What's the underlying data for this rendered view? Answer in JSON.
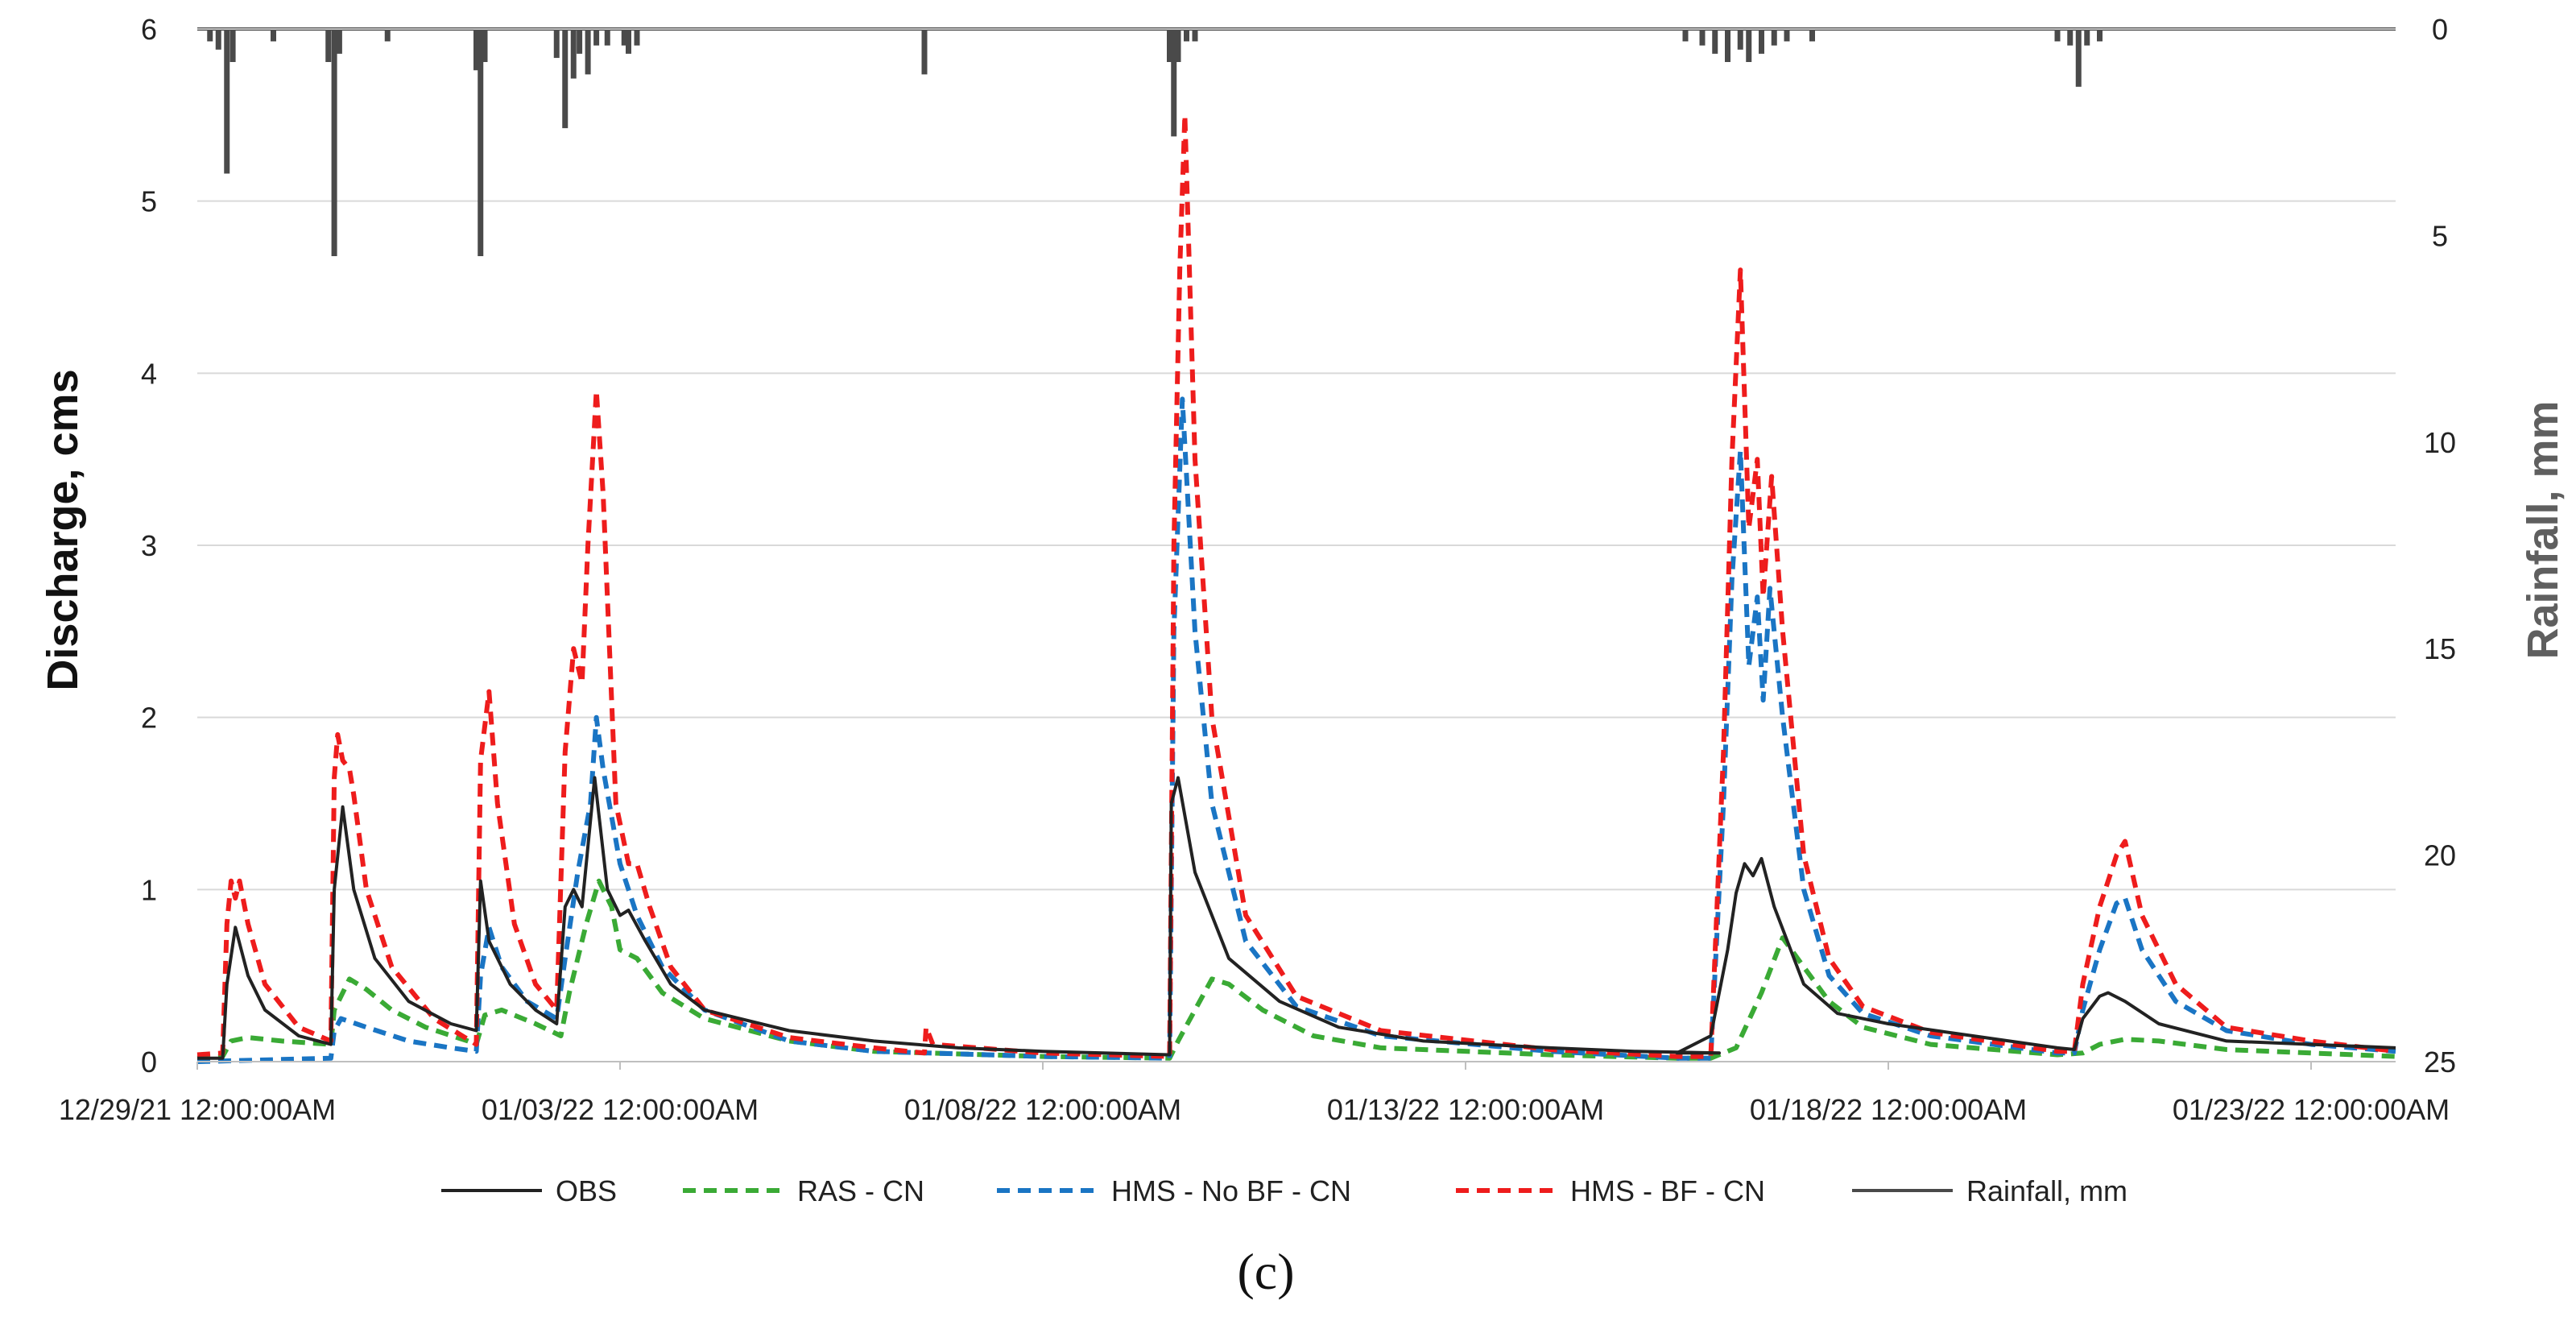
{
  "chart_data": {
    "type": "line",
    "title": "",
    "xlabel": "",
    "ylabel": "Discharge, cms",
    "y2label": "Rainfall, mm",
    "ylim": [
      0,
      6
    ],
    "y2lim": [
      0,
      25
    ],
    "y2_inverted": true,
    "xlim": [
      0,
      26
    ],
    "x_unit": "days since 12/29/21 12:00:00AM",
    "y_ticks": [
      "0",
      "1",
      "2",
      "3",
      "4",
      "5",
      "6"
    ],
    "y2_ticks": [
      "0",
      "5",
      "10",
      "15",
      "20",
      "25"
    ],
    "x_ticks": [
      {
        "x": 0,
        "label": "12/29/21 12:00:00AM"
      },
      {
        "x": 5,
        "label": "01/03/22 12:00:00AM"
      },
      {
        "x": 10,
        "label": "01/08/22 12:00:00AM"
      },
      {
        "x": 15,
        "label": "01/13/22 12:00:00AM"
      },
      {
        "x": 20,
        "label": "01/18/22 12:00:00AM"
      },
      {
        "x": 25,
        "label": "01/23/22 12:00:00AM"
      }
    ],
    "grid": true,
    "legend_position": "bottom",
    "caption": "(c)",
    "series": [
      {
        "name": "OBS",
        "style": "solid",
        "color": "#222222",
        "points": [
          [
            0,
            0.02
          ],
          [
            0.3,
            0.02
          ],
          [
            0.35,
            0.45
          ],
          [
            0.45,
            0.78
          ],
          [
            0.6,
            0.5
          ],
          [
            0.8,
            0.3
          ],
          [
            1.2,
            0.15
          ],
          [
            1.58,
            0.1
          ],
          [
            1.62,
            1.0
          ],
          [
            1.72,
            1.48
          ],
          [
            1.85,
            1.0
          ],
          [
            2.1,
            0.6
          ],
          [
            2.5,
            0.35
          ],
          [
            3.0,
            0.22
          ],
          [
            3.3,
            0.18
          ],
          [
            3.35,
            1.05
          ],
          [
            3.45,
            0.7
          ],
          [
            3.7,
            0.45
          ],
          [
            4.0,
            0.3
          ],
          [
            4.25,
            0.22
          ],
          [
            4.35,
            0.9
          ],
          [
            4.45,
            1.0
          ],
          [
            4.55,
            0.9
          ],
          [
            4.7,
            1.65
          ],
          [
            4.85,
            1.0
          ],
          [
            5.0,
            0.85
          ],
          [
            5.1,
            0.88
          ],
          [
            5.3,
            0.7
          ],
          [
            5.6,
            0.45
          ],
          [
            6.0,
            0.3
          ],
          [
            7.0,
            0.18
          ],
          [
            8.0,
            0.12
          ],
          [
            9.0,
            0.08
          ],
          [
            10.0,
            0.06
          ],
          [
            11.5,
            0.04
          ],
          [
            11.52,
            1.5
          ],
          [
            11.6,
            1.65
          ],
          [
            11.8,
            1.1
          ],
          [
            12.2,
            0.6
          ],
          [
            12.8,
            0.35
          ],
          [
            13.5,
            0.2
          ],
          [
            14.5,
            0.12
          ],
          [
            16.0,
            0.08
          ],
          [
            17.0,
            0.06
          ],
          [
            18.0,
            0.05
          ],
          [
            17.5,
            0.05
          ],
          [
            17.9,
            0.15
          ],
          [
            18.1,
            0.65
          ],
          [
            18.2,
            0.98
          ],
          [
            18.3,
            1.15
          ],
          [
            18.4,
            1.08
          ],
          [
            18.5,
            1.18
          ],
          [
            18.65,
            0.9
          ],
          [
            19.0,
            0.45
          ],
          [
            19.4,
            0.28
          ],
          [
            20.0,
            0.22
          ],
          [
            21.0,
            0.15
          ],
          [
            22.0,
            0.08
          ],
          [
            22.2,
            0.07
          ],
          [
            22.3,
            0.25
          ],
          [
            22.5,
            0.38
          ],
          [
            22.6,
            0.4
          ],
          [
            22.8,
            0.35
          ],
          [
            23.2,
            0.22
          ],
          [
            24.0,
            0.12
          ],
          [
            25.0,
            0.1
          ],
          [
            26.0,
            0.08
          ]
        ]
      },
      {
        "name": "RAS - CN",
        "style": "dashed",
        "color": "#3aaa35",
        "points": [
          [
            0,
            0.02
          ],
          [
            0.3,
            0.03
          ],
          [
            0.4,
            0.12
          ],
          [
            0.6,
            0.14
          ],
          [
            1.0,
            0.12
          ],
          [
            1.58,
            0.1
          ],
          [
            1.62,
            0.3
          ],
          [
            1.8,
            0.48
          ],
          [
            2.0,
            0.42
          ],
          [
            2.3,
            0.3
          ],
          [
            2.7,
            0.2
          ],
          [
            3.2,
            0.12
          ],
          [
            3.3,
            0.1
          ],
          [
            3.4,
            0.27
          ],
          [
            3.6,
            0.3
          ],
          [
            4.0,
            0.22
          ],
          [
            4.3,
            0.15
          ],
          [
            4.4,
            0.4
          ],
          [
            4.6,
            0.8
          ],
          [
            4.75,
            1.05
          ],
          [
            4.9,
            0.9
          ],
          [
            5.0,
            0.65
          ],
          [
            5.2,
            0.6
          ],
          [
            5.5,
            0.4
          ],
          [
            6.0,
            0.25
          ],
          [
            7.0,
            0.12
          ],
          [
            8.0,
            0.06
          ],
          [
            10.0,
            0.03
          ],
          [
            11.5,
            0.02
          ],
          [
            11.6,
            0.12
          ],
          [
            11.8,
            0.3
          ],
          [
            12.0,
            0.48
          ],
          [
            12.2,
            0.45
          ],
          [
            12.6,
            0.3
          ],
          [
            13.2,
            0.15
          ],
          [
            14.0,
            0.08
          ],
          [
            16.0,
            0.04
          ],
          [
            17.5,
            0.02
          ],
          [
            17.9,
            0.02
          ],
          [
            18.2,
            0.08
          ],
          [
            18.5,
            0.4
          ],
          [
            18.75,
            0.72
          ],
          [
            19.0,
            0.55
          ],
          [
            19.3,
            0.35
          ],
          [
            19.7,
            0.2
          ],
          [
            20.5,
            0.1
          ],
          [
            22.0,
            0.04
          ],
          [
            22.3,
            0.05
          ],
          [
            22.5,
            0.1
          ],
          [
            22.8,
            0.13
          ],
          [
            23.2,
            0.12
          ],
          [
            24.0,
            0.07
          ],
          [
            26.0,
            0.03
          ]
        ]
      },
      {
        "name": "HMS - No BF - CN",
        "style": "dashed",
        "color": "#1a75c4",
        "points": [
          [
            0,
            0.0
          ],
          [
            1.58,
            0.02
          ],
          [
            1.62,
            0.18
          ],
          [
            1.7,
            0.25
          ],
          [
            2.0,
            0.2
          ],
          [
            2.5,
            0.12
          ],
          [
            3.0,
            0.08
          ],
          [
            3.3,
            0.06
          ],
          [
            3.35,
            0.5
          ],
          [
            3.45,
            0.78
          ],
          [
            3.6,
            0.55
          ],
          [
            3.9,
            0.35
          ],
          [
            4.25,
            0.25
          ],
          [
            4.35,
            0.6
          ],
          [
            4.5,
            1.1
          ],
          [
            4.65,
            1.5
          ],
          [
            4.72,
            2.0
          ],
          [
            4.8,
            1.7
          ],
          [
            5.0,
            1.15
          ],
          [
            5.2,
            0.85
          ],
          [
            5.5,
            0.55
          ],
          [
            6.0,
            0.3
          ],
          [
            7.0,
            0.12
          ],
          [
            8.0,
            0.06
          ],
          [
            10.0,
            0.03
          ],
          [
            11.5,
            0.02
          ],
          [
            11.55,
            2.5
          ],
          [
            11.65,
            3.85
          ],
          [
            11.8,
            2.5
          ],
          [
            12.0,
            1.5
          ],
          [
            12.4,
            0.7
          ],
          [
            13.0,
            0.32
          ],
          [
            14.0,
            0.15
          ],
          [
            16.0,
            0.06
          ],
          [
            17.5,
            0.02
          ],
          [
            17.9,
            0.02
          ],
          [
            18.05,
            1.5
          ],
          [
            18.15,
            2.8
          ],
          [
            18.25,
            3.55
          ],
          [
            18.35,
            2.3
          ],
          [
            18.45,
            2.7
          ],
          [
            18.52,
            2.1
          ],
          [
            18.6,
            2.75
          ],
          [
            18.75,
            2.0
          ],
          [
            19.0,
            1.0
          ],
          [
            19.3,
            0.5
          ],
          [
            19.7,
            0.28
          ],
          [
            20.5,
            0.15
          ],
          [
            22.0,
            0.05
          ],
          [
            22.2,
            0.05
          ],
          [
            22.3,
            0.3
          ],
          [
            22.5,
            0.65
          ],
          [
            22.7,
            0.92
          ],
          [
            22.8,
            0.95
          ],
          [
            23.0,
            0.65
          ],
          [
            23.4,
            0.35
          ],
          [
            24.0,
            0.18
          ],
          [
            25.0,
            0.1
          ],
          [
            26.0,
            0.06
          ]
        ]
      },
      {
        "name": "HMS - BF - CN",
        "style": "dashed",
        "color": "#ee1c1c",
        "points": [
          [
            0,
            0.04
          ],
          [
            0.3,
            0.05
          ],
          [
            0.35,
            0.8
          ],
          [
            0.4,
            1.05
          ],
          [
            0.45,
            0.95
          ],
          [
            0.5,
            1.05
          ],
          [
            0.6,
            0.8
          ],
          [
            0.8,
            0.45
          ],
          [
            1.2,
            0.2
          ],
          [
            1.58,
            0.12
          ],
          [
            1.62,
            1.65
          ],
          [
            1.66,
            1.9
          ],
          [
            1.72,
            1.75
          ],
          [
            1.8,
            1.7
          ],
          [
            1.85,
            1.55
          ],
          [
            2.0,
            1.0
          ],
          [
            2.3,
            0.55
          ],
          [
            2.8,
            0.25
          ],
          [
            3.3,
            0.1
          ],
          [
            3.35,
            1.75
          ],
          [
            3.45,
            2.15
          ],
          [
            3.55,
            1.5
          ],
          [
            3.75,
            0.8
          ],
          [
            4.0,
            0.45
          ],
          [
            4.25,
            0.3
          ],
          [
            4.35,
            1.8
          ],
          [
            4.45,
            2.4
          ],
          [
            4.55,
            2.2
          ],
          [
            4.62,
            3.0
          ],
          [
            4.72,
            3.9
          ],
          [
            4.8,
            3.3
          ],
          [
            4.95,
            1.5
          ],
          [
            5.1,
            1.15
          ],
          [
            5.2,
            1.15
          ],
          [
            5.35,
            0.9
          ],
          [
            5.6,
            0.55
          ],
          [
            6.0,
            0.3
          ],
          [
            7.0,
            0.14
          ],
          [
            8.0,
            0.08
          ],
          [
            8.6,
            0.05
          ],
          [
            8.62,
            0.2
          ],
          [
            8.7,
            0.1
          ],
          [
            10.0,
            0.05
          ],
          [
            11.5,
            0.03
          ],
          [
            11.55,
            3.0
          ],
          [
            11.62,
            4.6
          ],
          [
            11.68,
            5.5
          ],
          [
            11.8,
            3.5
          ],
          [
            12.0,
            2.0
          ],
          [
            12.4,
            0.85
          ],
          [
            13.0,
            0.38
          ],
          [
            14.0,
            0.18
          ],
          [
            16.0,
            0.07
          ],
          [
            17.5,
            0.03
          ],
          [
            17.9,
            0.03
          ],
          [
            18.05,
            1.8
          ],
          [
            18.15,
            3.5
          ],
          [
            18.25,
            4.6
          ],
          [
            18.35,
            3.1
          ],
          [
            18.45,
            3.5
          ],
          [
            18.52,
            2.7
          ],
          [
            18.62,
            3.4
          ],
          [
            18.75,
            2.5
          ],
          [
            19.0,
            1.2
          ],
          [
            19.3,
            0.6
          ],
          [
            19.7,
            0.32
          ],
          [
            20.5,
            0.17
          ],
          [
            22.0,
            0.06
          ],
          [
            22.2,
            0.06
          ],
          [
            22.3,
            0.45
          ],
          [
            22.5,
            0.9
          ],
          [
            22.7,
            1.2
          ],
          [
            22.8,
            1.28
          ],
          [
            23.0,
            0.85
          ],
          [
            23.4,
            0.45
          ],
          [
            24.0,
            0.2
          ],
          [
            25.0,
            0.12
          ],
          [
            26.0,
            0.06
          ]
        ]
      }
    ],
    "rainfall": {
      "name": "Rainfall, mm",
      "style": "solid",
      "color": "#4a4a4a",
      "bars": [
        [
          0.15,
          0.3
        ],
        [
          0.25,
          0.5
        ],
        [
          0.35,
          3.5
        ],
        [
          0.42,
          0.8
        ],
        [
          0.9,
          0.3
        ],
        [
          1.55,
          0.8
        ],
        [
          1.62,
          5.5
        ],
        [
          1.68,
          0.6
        ],
        [
          2.25,
          0.3
        ],
        [
          3.3,
          1.0
        ],
        [
          3.35,
          5.5
        ],
        [
          3.4,
          0.8
        ],
        [
          4.25,
          0.7
        ],
        [
          4.35,
          2.4
        ],
        [
          4.45,
          1.2
        ],
        [
          4.52,
          0.6
        ],
        [
          4.62,
          1.1
        ],
        [
          4.72,
          0.4
        ],
        [
          4.85,
          0.4
        ],
        [
          5.05,
          0.4
        ],
        [
          5.1,
          0.6
        ],
        [
          5.2,
          0.4
        ],
        [
          8.6,
          1.1
        ],
        [
          11.5,
          0.8
        ],
        [
          11.55,
          2.6
        ],
        [
          11.6,
          0.8
        ],
        [
          11.7,
          0.3
        ],
        [
          11.8,
          0.3
        ],
        [
          17.6,
          0.3
        ],
        [
          17.8,
          0.4
        ],
        [
          17.95,
          0.6
        ],
        [
          18.1,
          0.8
        ],
        [
          18.25,
          0.5
        ],
        [
          18.35,
          0.8
        ],
        [
          18.5,
          0.6
        ],
        [
          18.65,
          0.4
        ],
        [
          18.8,
          0.3
        ],
        [
          19.1,
          0.3
        ],
        [
          22.0,
          0.3
        ],
        [
          22.15,
          0.4
        ],
        [
          22.25,
          1.4
        ],
        [
          22.35,
          0.4
        ],
        [
          22.5,
          0.3
        ]
      ]
    }
  }
}
